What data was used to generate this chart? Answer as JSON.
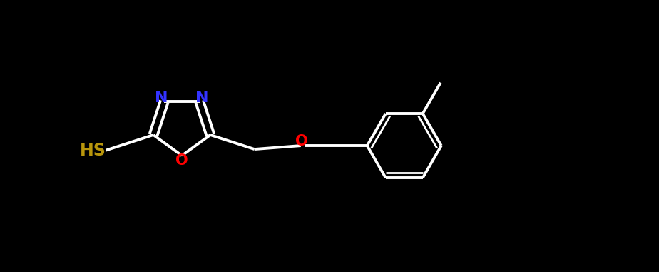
{
  "background_color": "#000000",
  "bond_color": "#ffffff",
  "N_color": "#3333ff",
  "O_color": "#ff0000",
  "S_color": "#b8960c",
  "bond_width": 2.8,
  "font_size": 16,
  "fig_width": 9.24,
  "fig_height": 3.81,
  "dpi": 100,
  "xlim": [
    0,
    9.24
  ],
  "ylim": [
    0,
    3.81
  ]
}
